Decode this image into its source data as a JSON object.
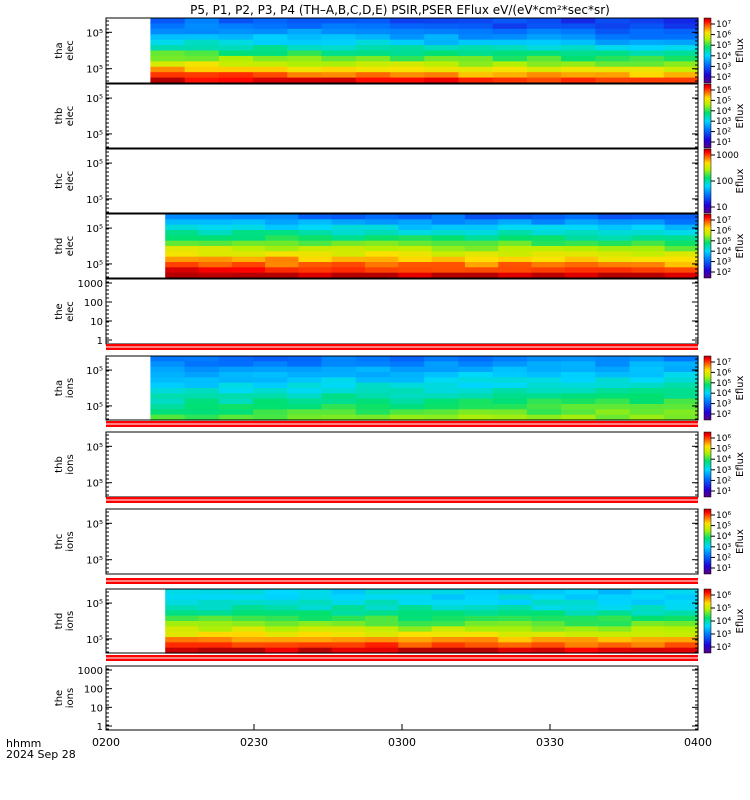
{
  "title": "P5, P1, P2, P3, P4 (TH–A,B,C,D,E) PSIR,PSER EFlux eV/(eV*cm²*sec*sr)",
  "footer": {
    "format_label": "hhmm",
    "date_label": "2024 Sep 28"
  },
  "chart_data": {
    "type": "heatmap",
    "x_axis": {
      "range": [
        "02:00",
        "04:00"
      ],
      "ticks": [
        "0200",
        "0230",
        "0300",
        "0330",
        "0400"
      ]
    },
    "colormap": "rainbow (purple-blue-cyan-green-yellow-red-darkred)",
    "panels": [
      {
        "label": [
          "tha",
          "elec"
        ],
        "ylog": true,
        "yticks": [
          "10⁵",
          "10⁵"
        ],
        "data": true,
        "data_start": "02:09",
        "palette": "elec_a",
        "colorbar": {
          "label": "Eflux",
          "ticks": [
            "10⁷",
            "10⁶",
            "10⁵",
            "10⁴",
            "10³",
            "10²"
          ]
        }
      },
      {
        "label": [
          "thb",
          "elec"
        ],
        "ylog": true,
        "yticks": [
          "10⁵",
          "10⁵"
        ],
        "data": false,
        "colorbar": {
          "label": "Eflux",
          "ticks": [
            "10⁶",
            "10⁵",
            "10⁴",
            "10³",
            "10²",
            "10¹"
          ]
        }
      },
      {
        "label": [
          "thc",
          "elec"
        ],
        "ylog": true,
        "yticks": [
          "10⁵",
          "10⁵"
        ],
        "data": false,
        "colorbar": {
          "label": "Eflux",
          "ticks": [
            "1000",
            "100",
            "10"
          ]
        }
      },
      {
        "label": [
          "thd",
          "elec"
        ],
        "ylog": true,
        "yticks": [
          "10⁵",
          "10⁵"
        ],
        "data": true,
        "data_start": "02:12",
        "palette": "elec_d",
        "colorbar": {
          "label": "Eflux",
          "ticks": [
            "10⁷",
            "10⁶",
            "10⁵",
            "10⁴",
            "10³",
            "10²"
          ]
        }
      },
      {
        "label": [
          "the",
          "elec"
        ],
        "ylog": true,
        "yticks": [
          "1000",
          "100",
          "10",
          "1"
        ],
        "data": false,
        "bars_below": 1
      },
      {
        "label": [
          "tha",
          "ions"
        ],
        "ylog": true,
        "yticks": [
          "10⁵",
          "10⁵"
        ],
        "data": true,
        "data_start": "02:09",
        "palette": "ions_a",
        "bars_below": 1,
        "colorbar": {
          "label": "Eflux",
          "ticks": [
            "10⁷",
            "10⁶",
            "10⁵",
            "10⁴",
            "10³",
            "10²"
          ]
        }
      },
      {
        "label": [
          "thb",
          "ions"
        ],
        "ylog": true,
        "yticks": [
          "10⁵",
          "10⁵"
        ],
        "data": false,
        "bars_below": 1,
        "colorbar": {
          "label": "Eflux",
          "ticks": [
            "10⁶",
            "10⁵",
            "10⁴",
            "10³",
            "10²",
            "10¹"
          ]
        }
      },
      {
        "label": [
          "thc",
          "ions"
        ],
        "ylog": true,
        "yticks": [
          "10⁵",
          "10⁵"
        ],
        "data": false,
        "bars_below": 1,
        "colorbar": {
          "label": "Eflux",
          "ticks": [
            "10⁶",
            "10⁵",
            "10⁴",
            "10³",
            "10²",
            "10¹"
          ]
        }
      },
      {
        "label": [
          "thd",
          "ions"
        ],
        "ylog": true,
        "yticks": [
          "10⁵",
          "10⁵"
        ],
        "data": true,
        "data_start": "02:12",
        "palette": "ions_d",
        "bars_below": 1,
        "colorbar": {
          "label": "Eflux",
          "ticks": [
            "10⁶",
            "10⁵",
            "10⁴",
            "10³",
            "10²"
          ]
        }
      },
      {
        "label": [
          "the",
          "ions"
        ],
        "ylog": true,
        "yticks": [
          "1000",
          "100",
          "10",
          "1"
        ],
        "data": false
      }
    ]
  }
}
